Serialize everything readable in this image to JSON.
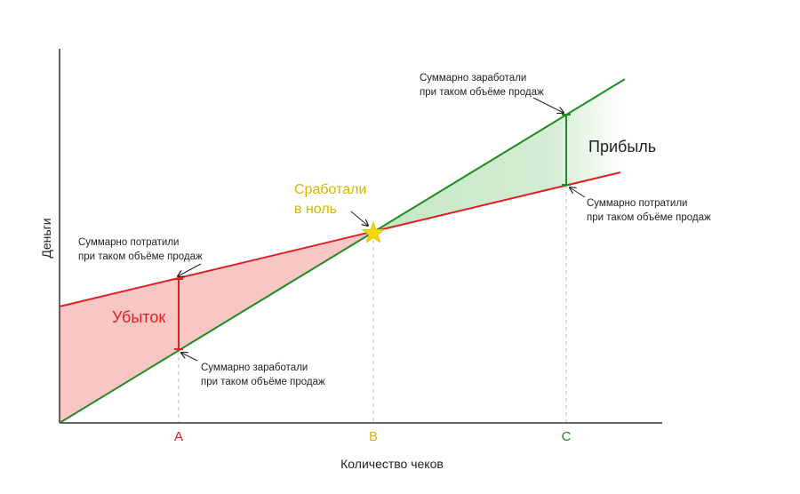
{
  "axes": {
    "y_label": "Деньги",
    "x_label": "Количество чеков"
  },
  "points": [
    {
      "label": "A"
    },
    {
      "label": "B"
    },
    {
      "label": "C"
    }
  ],
  "regions": {
    "loss": "Убыток",
    "profit": "Прибыль"
  },
  "break_even": [
    "Сработали",
    "в ноль"
  ],
  "annotations": [
    [
      "Суммарно потратили",
      "при таком объёме продаж"
    ],
    [
      "Суммарно заработали",
      "при таком объёме продаж"
    ],
    [
      "Суммарно заработали",
      "при таком объёме продаж"
    ],
    [
      "Суммарно потратили",
      "при таком объёме продаж"
    ]
  ]
}
